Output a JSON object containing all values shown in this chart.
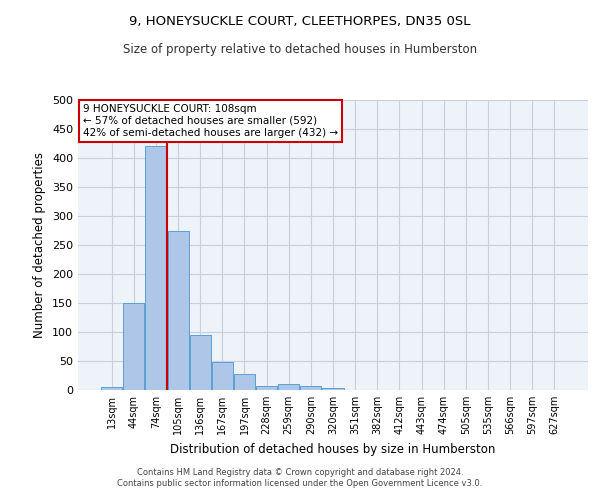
{
  "title": "9, HONEYSUCKLE COURT, CLEETHORPES, DN35 0SL",
  "subtitle": "Size of property relative to detached houses in Humberston",
  "xlabel": "Distribution of detached houses by size in Humberston",
  "ylabel": "Number of detached properties",
  "footer_line1": "Contains HM Land Registry data © Crown copyright and database right 2024.",
  "footer_line2": "Contains public sector information licensed under the Open Government Licence v3.0.",
  "bar_labels": [
    "13sqm",
    "44sqm",
    "74sqm",
    "105sqm",
    "136sqm",
    "167sqm",
    "197sqm",
    "228sqm",
    "259sqm",
    "290sqm",
    "320sqm",
    "351sqm",
    "382sqm",
    "412sqm",
    "443sqm",
    "474sqm",
    "505sqm",
    "535sqm",
    "566sqm",
    "597sqm",
    "627sqm"
  ],
  "bar_values": [
    5,
    150,
    420,
    275,
    95,
    48,
    28,
    7,
    10,
    7,
    3,
    0,
    0,
    0,
    0,
    0,
    0,
    0,
    0,
    0,
    0
  ],
  "bar_color": "#aec6e8",
  "bar_edge_color": "#5a9fd4",
  "grid_color": "#c8d0dc",
  "bg_color": "#eef2f9",
  "property_line_x": 2.5,
  "annotation_text": "9 HONEYSUCKLE COURT: 108sqm\n← 57% of detached houses are smaller (592)\n42% of semi-detached houses are larger (432) →",
  "annotation_box_color": "#ffffff",
  "annotation_box_edge": "#cc0000",
  "vline_color": "#cc0000",
  "ylim": [
    0,
    500
  ],
  "yticks": [
    0,
    50,
    100,
    150,
    200,
    250,
    300,
    350,
    400,
    450,
    500
  ]
}
